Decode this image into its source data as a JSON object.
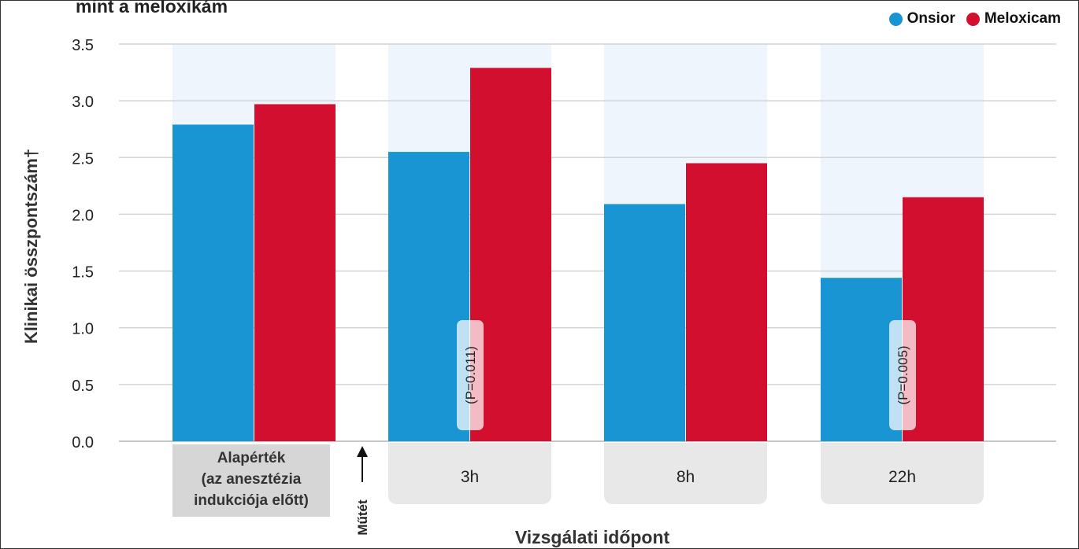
{
  "chart_data": {
    "type": "bar",
    "title": "mint a meloxikám",
    "xlabel": "Vizsgálati időpont",
    "ylabel": "Klinikai összpontszám†",
    "ylim": [
      0,
      3.5
    ],
    "yticks": [
      "0.0",
      "0.5",
      "1.0",
      "1.5",
      "2.0",
      "2.5",
      "3.0",
      "3.5"
    ],
    "grid": true,
    "legend_position": "top-right",
    "categories": [
      [
        "Alapérték",
        "(az anesztézia",
        "indukciója előtt)"
      ],
      [
        "3h"
      ],
      [
        "8h"
      ],
      [
        "22h"
      ]
    ],
    "series": [
      {
        "name": "Onsior",
        "color": "#1a95d3",
        "values": [
          2.79,
          2.55,
          2.09,
          1.44
        ]
      },
      {
        "name": "Meloxicam",
        "color": "#d20f2f",
        "values": [
          2.97,
          3.29,
          2.45,
          2.15
        ]
      }
    ],
    "annotations": [
      {
        "category_index": 1,
        "text": "(P=0.011)"
      },
      {
        "category_index": 3,
        "text": "(P=0.005)"
      }
    ],
    "marker_text": "Műtét"
  }
}
